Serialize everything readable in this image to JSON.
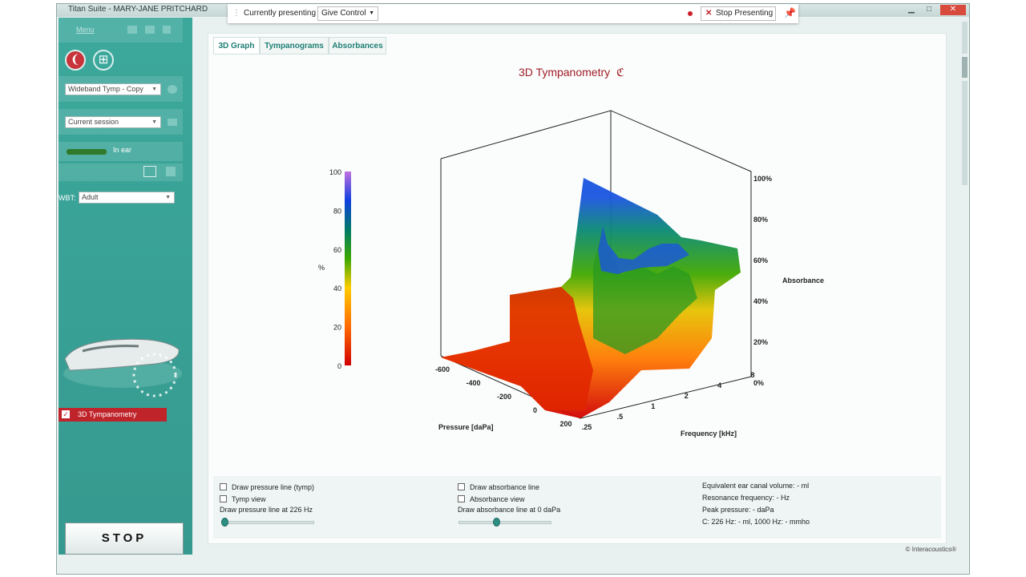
{
  "window": {
    "title": "Titan Suite - MARY-JANE PRITCHARD",
    "minimize": "▁",
    "maximize": "□",
    "close": "✕"
  },
  "presenting_bar": {
    "label": "Currently presenting",
    "give_control": "Give Control",
    "stop_presenting": "Stop Presenting",
    "record_color": "#cc1f2a"
  },
  "sidebar": {
    "menu_label": "Menu",
    "protocol_select": "Wideband Tymp - Copy",
    "session_select": "Current session",
    "in_ear_label": "In ear",
    "wbt_label": "WBT:",
    "wbt_select": "Adult",
    "test_item": "3D Tympanometry",
    "test_checked": "✓",
    "stop_label": "STOP",
    "accent": "#c0242b"
  },
  "tabs": [
    {
      "label": "3D Graph"
    },
    {
      "label": "Tympanograms"
    },
    {
      "label": "Absorbances"
    }
  ],
  "graph": {
    "title": "3D Tympanometry",
    "ear_symbol": "ℭ",
    "colorbar_ticks": [
      "100",
      "80",
      "60",
      "40",
      "20",
      "0"
    ],
    "colorbar_unit": "%",
    "pressure_ticks": [
      "-600",
      "-400",
      "-200",
      "0",
      "200"
    ],
    "pressure_label": "Pressure [daPa]",
    "frequency_ticks": [
      ".25",
      ".5",
      "1",
      "2",
      "4",
      "8"
    ],
    "frequency_label": "Frequency [kHz]",
    "absorbance_ticks": [
      "100%",
      "80%",
      "60%",
      "40%",
      "20%",
      "0%"
    ],
    "absorbance_label": "Absorbance"
  },
  "chart_data": {
    "type": "surface",
    "title": "3D Tympanometry",
    "xlabel": "Pressure [daPa]",
    "ylabel": "Frequency [kHz]",
    "zlabel": "Absorbance",
    "x_ticks": [
      -600,
      -400,
      -200,
      0,
      200
    ],
    "y_ticks": [
      0.25,
      0.5,
      1,
      2,
      4,
      8
    ],
    "z_range": [
      0,
      100
    ],
    "colorbar": [
      0,
      100
    ]
  },
  "controls": {
    "draw_pressure_line": "Draw pressure line (tymp)",
    "tymp_view": "Tymp view",
    "pressure_line_caption": "Draw pressure line at 226 Hz",
    "draw_absorbance_line": "Draw absorbance line",
    "absorbance_view": "Absorbance view",
    "absorbance_line_caption": "Draw absorbance line at 0 daPa",
    "pressure_slider": 0,
    "absorbance_slider": 0.4
  },
  "results": {
    "ecv": "Equivalent ear canal volume: - ml",
    "resonance": "Resonance frequency: - Hz",
    "peak_pressure": "Peak pressure: - daPa",
    "compliance": "C: 226 Hz: - ml, 1000 Hz: - mmho"
  },
  "footer": {
    "credit": "© Interacoustics®"
  }
}
